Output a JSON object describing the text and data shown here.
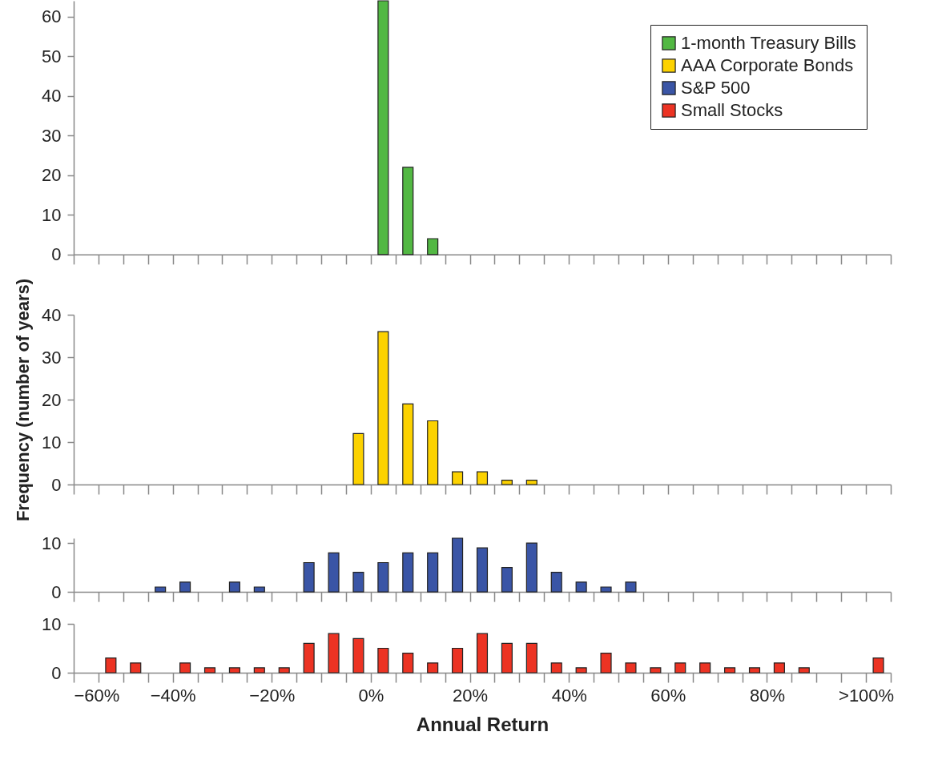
{
  "chart_data": [
    {
      "type": "histogram",
      "bins": [
        -60,
        -55,
        -50,
        -45,
        -40,
        -35,
        -30,
        -25,
        -20,
        -15,
        -10,
        -5,
        0,
        5,
        10,
        15,
        20,
        25,
        30,
        35,
        40,
        45,
        50,
        55,
        60,
        65,
        70,
        75,
        80,
        85,
        90,
        95,
        100,
        105
      ],
      "series": [
        {
          "name": "1-month Treasury Bills",
          "color": "#52b843",
          "values": [
            0,
            0,
            0,
            0,
            0,
            0,
            0,
            0,
            0,
            0,
            0,
            0,
            64,
            22,
            4,
            0,
            0,
            0,
            0,
            0,
            0,
            0,
            0,
            0,
            0,
            0,
            0,
            0,
            0,
            0,
            0,
            0,
            0
          ]
        }
      ],
      "legend": "top right",
      "tick_labels": "y",
      "xlim": [
        -60,
        105
      ],
      "ylim": [
        0,
        64
      ],
      "yticks": [
        0,
        10,
        20,
        30,
        40,
        50,
        60
      ],
      "xticks": [
        {
          "value": -60,
          "label": null
        },
        {
          "value": -55,
          "label": null
        },
        {
          "value": -50,
          "label": null
        },
        {
          "value": -45,
          "label": null
        },
        {
          "value": -40,
          "label": null
        },
        {
          "value": -35,
          "label": null
        },
        {
          "value": -30,
          "label": null
        },
        {
          "value": -25,
          "label": null
        },
        {
          "value": -20,
          "label": null
        },
        {
          "value": -15,
          "label": null
        },
        {
          "value": -10,
          "label": null
        },
        {
          "value": -5,
          "label": null
        },
        {
          "value": 0,
          "label": null
        },
        {
          "value": 5,
          "label": null
        },
        {
          "value": 10,
          "label": null
        },
        {
          "value": 15,
          "label": null
        },
        {
          "value": 20,
          "label": null
        },
        {
          "value": 25,
          "label": null
        },
        {
          "value": 30,
          "label": null
        },
        {
          "value": 35,
          "label": null
        },
        {
          "value": 40,
          "label": null
        },
        {
          "value": 45,
          "label": null
        },
        {
          "value": 50,
          "label": null
        },
        {
          "value": 55,
          "label": null
        },
        {
          "value": 60,
          "label": null
        },
        {
          "value": 65,
          "label": null
        },
        {
          "value": 70,
          "label": null
        },
        {
          "value": 75,
          "label": null
        },
        {
          "value": 80,
          "label": null
        },
        {
          "value": 85,
          "label": null
        },
        {
          "value": 90,
          "label": null
        },
        {
          "value": 95,
          "label": null
        },
        {
          "value": 100,
          "label": null
        },
        {
          "value": 105,
          "label": null
        }
      ]
    },
    {
      "type": "histogram",
      "bins": [
        -60,
        -55,
        -50,
        -45,
        -40,
        -35,
        -30,
        -25,
        -20,
        -15,
        -10,
        -5,
        0,
        5,
        10,
        15,
        20,
        25,
        30,
        35,
        40,
        45,
        50,
        55,
        60,
        65,
        70,
        75,
        80,
        85,
        90,
        95,
        100,
        105
      ],
      "series": [
        {
          "name": "AAA Corporate Bonds",
          "color": "#fcd200",
          "values": [
            0,
            0,
            0,
            0,
            0,
            0,
            0,
            0,
            0,
            0,
            0,
            12,
            36,
            19,
            15,
            3,
            3,
            1,
            1,
            0,
            0,
            0,
            0,
            0,
            0,
            0,
            0,
            0,
            0,
            0,
            0,
            0,
            0
          ]
        }
      ],
      "ylabel": "Frequency (number of years)",
      "tick_labels": "y",
      "xlim": [
        -60,
        105
      ],
      "ylim": [
        0,
        40
      ],
      "yticks": [
        0,
        10,
        20,
        30,
        40
      ],
      "xticks": [
        {
          "value": -60,
          "label": null
        },
        {
          "value": -55,
          "label": null
        },
        {
          "value": -50,
          "label": null
        },
        {
          "value": -45,
          "label": null
        },
        {
          "value": -40,
          "label": null
        },
        {
          "value": -35,
          "label": null
        },
        {
          "value": -30,
          "label": null
        },
        {
          "value": -25,
          "label": null
        },
        {
          "value": -20,
          "label": null
        },
        {
          "value": -15,
          "label": null
        },
        {
          "value": -10,
          "label": null
        },
        {
          "value": -5,
          "label": null
        },
        {
          "value": 0,
          "label": null
        },
        {
          "value": 5,
          "label": null
        },
        {
          "value": 10,
          "label": null
        },
        {
          "value": 15,
          "label": null
        },
        {
          "value": 20,
          "label": null
        },
        {
          "value": 25,
          "label": null
        },
        {
          "value": 30,
          "label": null
        },
        {
          "value": 35,
          "label": null
        },
        {
          "value": 40,
          "label": null
        },
        {
          "value": 45,
          "label": null
        },
        {
          "value": 50,
          "label": null
        },
        {
          "value": 55,
          "label": null
        },
        {
          "value": 60,
          "label": null
        },
        {
          "value": 65,
          "label": null
        },
        {
          "value": 70,
          "label": null
        },
        {
          "value": 75,
          "label": null
        },
        {
          "value": 80,
          "label": null
        },
        {
          "value": 85,
          "label": null
        },
        {
          "value": 90,
          "label": null
        },
        {
          "value": 95,
          "label": null
        },
        {
          "value": 100,
          "label": null
        },
        {
          "value": 105,
          "label": null
        }
      ]
    },
    {
      "type": "histogram",
      "bins": [
        -60,
        -55,
        -50,
        -45,
        -40,
        -35,
        -30,
        -25,
        -20,
        -15,
        -10,
        -5,
        0,
        5,
        10,
        15,
        20,
        25,
        30,
        35,
        40,
        45,
        50,
        55,
        60,
        65,
        70,
        75,
        80,
        85,
        90,
        95,
        100,
        105
      ],
      "series": [
        {
          "name": "S&P 500",
          "color": "#3a55a6",
          "values": [
            0,
            0,
            0,
            1,
            2,
            0,
            2,
            1,
            0,
            6,
            8,
            4,
            6,
            8,
            8,
            11,
            9,
            5,
            10,
            4,
            2,
            1,
            2,
            0,
            0,
            0,
            0,
            0,
            0,
            0,
            0,
            0,
            0
          ]
        }
      ],
      "tick_labels": "y",
      "xlim": [
        -60,
        105
      ],
      "ylim": [
        0,
        11
      ],
      "yticks": [
        0,
        10
      ],
      "xticks": [
        {
          "value": -60,
          "label": null
        },
        {
          "value": -55,
          "label": null
        },
        {
          "value": -50,
          "label": null
        },
        {
          "value": -45,
          "label": null
        },
        {
          "value": -40,
          "label": null
        },
        {
          "value": -35,
          "label": null
        },
        {
          "value": -30,
          "label": null
        },
        {
          "value": -25,
          "label": null
        },
        {
          "value": -20,
          "label": null
        },
        {
          "value": -15,
          "label": null
        },
        {
          "value": -10,
          "label": null
        },
        {
          "value": -5,
          "label": null
        },
        {
          "value": 0,
          "label": null
        },
        {
          "value": 5,
          "label": null
        },
        {
          "value": 10,
          "label": null
        },
        {
          "value": 15,
          "label": null
        },
        {
          "value": 20,
          "label": null
        },
        {
          "value": 25,
          "label": null
        },
        {
          "value": 30,
          "label": null
        },
        {
          "value": 35,
          "label": null
        },
        {
          "value": 40,
          "label": null
        },
        {
          "value": 45,
          "label": null
        },
        {
          "value": 50,
          "label": null
        },
        {
          "value": 55,
          "label": null
        },
        {
          "value": 60,
          "label": null
        },
        {
          "value": 65,
          "label": null
        },
        {
          "value": 70,
          "label": null
        },
        {
          "value": 75,
          "label": null
        },
        {
          "value": 80,
          "label": null
        },
        {
          "value": 85,
          "label": null
        },
        {
          "value": 90,
          "label": null
        },
        {
          "value": 95,
          "label": null
        },
        {
          "value": 100,
          "label": null
        },
        {
          "value": 105,
          "label": null
        }
      ]
    },
    {
      "type": "histogram",
      "bins": [
        -60,
        -55,
        -50,
        -45,
        -40,
        -35,
        -30,
        -25,
        -20,
        -15,
        -10,
        -5,
        0,
        5,
        10,
        15,
        20,
        25,
        30,
        35,
        40,
        45,
        50,
        55,
        60,
        65,
        70,
        75,
        80,
        85,
        90,
        95,
        100,
        105
      ],
      "series": [
        {
          "name": "Small Stocks",
          "color": "#ec3323",
          "values": [
            0,
            3,
            2,
            0,
            2,
            1,
            1,
            1,
            1,
            6,
            8,
            7,
            5,
            4,
            2,
            5,
            8,
            6,
            6,
            2,
            1,
            4,
            2,
            1,
            2,
            2,
            1,
            1,
            2,
            1,
            0,
            0,
            3
          ]
        }
      ],
      "xlabel": "Annual Return",
      "xlim": [
        -60,
        105
      ],
      "ylim": [
        0,
        10
      ],
      "yticks": [
        0,
        10
      ],
      "xticks": [
        {
          "value": -60,
          "label": "−60%"
        },
        {
          "value": -55,
          "label": null
        },
        {
          "value": -50,
          "label": null
        },
        {
          "value": -45,
          "label": null
        },
        {
          "value": -40,
          "label": "−40%"
        },
        {
          "value": -35,
          "label": null
        },
        {
          "value": -30,
          "label": null
        },
        {
          "value": -25,
          "label": null
        },
        {
          "value": -20,
          "label": "−20%"
        },
        {
          "value": -15,
          "label": null
        },
        {
          "value": -10,
          "label": null
        },
        {
          "value": -5,
          "label": null
        },
        {
          "value": 0,
          "label": "0%"
        },
        {
          "value": 5,
          "label": null
        },
        {
          "value": 10,
          "label": null
        },
        {
          "value": 15,
          "label": null
        },
        {
          "value": 20,
          "label": "20%"
        },
        {
          "value": 25,
          "label": null
        },
        {
          "value": 30,
          "label": null
        },
        {
          "value": 35,
          "label": null
        },
        {
          "value": 40,
          "label": "40%"
        },
        {
          "value": 45,
          "label": null
        },
        {
          "value": 50,
          "label": null
        },
        {
          "value": 55,
          "label": null
        },
        {
          "value": 60,
          "label": "60%"
        },
        {
          "value": 65,
          "label": null
        },
        {
          "value": 70,
          "label": null
        },
        {
          "value": 75,
          "label": null
        },
        {
          "value": 80,
          "label": "80%"
        },
        {
          "value": 85,
          "label": null
        },
        {
          "value": 90,
          "label": null
        },
        {
          "value": 95,
          "label": null
        },
        {
          "value": 100,
          "label": ">100%"
        },
        {
          "value": 105,
          "label": null
        }
      ]
    }
  ]
}
